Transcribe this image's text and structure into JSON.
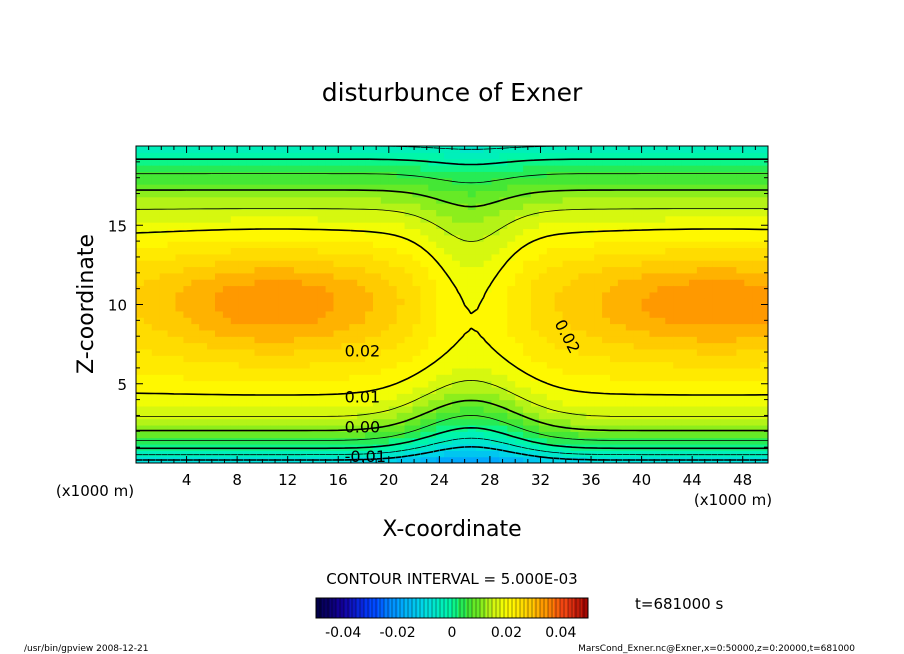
{
  "chart_data": {
    "type": "heatmap",
    "title": "disturbunce of Exner",
    "xlabel": "X-coordinate",
    "ylabel": "Z-coordinate",
    "x_unit": "(x1000 m)",
    "y_unit": "(x1000 m)",
    "xlim": [
      0,
      50
    ],
    "ylim": [
      0,
      20
    ],
    "x_ticks": [
      4,
      8,
      12,
      16,
      20,
      24,
      28,
      32,
      36,
      40,
      44,
      48
    ],
    "y_ticks": [
      5,
      10,
      15
    ],
    "contour_interval_label": "CONTOUR INTERVAL = 5.000E-03",
    "contour_levels": [
      -0.01,
      -0.005,
      0.0,
      0.005,
      0.01,
      0.015,
      0.02
    ],
    "contour_labels": [
      {
        "text": "0.02",
        "x": 16.5,
        "y": 7.1
      },
      {
        "text": "0.02",
        "x": 33.5,
        "y": 9.0
      },
      {
        "text": "0.01",
        "x": 16.5,
        "y": 4.2
      },
      {
        "text": "0.00",
        "x": 16.5,
        "y": 2.3
      },
      {
        "text": "-0.01",
        "x": 16.5,
        "y": 0.45
      }
    ],
    "colorbar": {
      "ticks": [
        "-0.04",
        "-0.02",
        "0",
        "0.02",
        "0.04"
      ],
      "range": [
        -0.05,
        0.05
      ]
    },
    "time_label": "t=681000 s",
    "footer_left": "/usr/bin/gpview   2008-12-21",
    "footer_right": "MarsCond_Exner.nc@Exner,x=0:50000,z=0:20000,t=681000"
  }
}
